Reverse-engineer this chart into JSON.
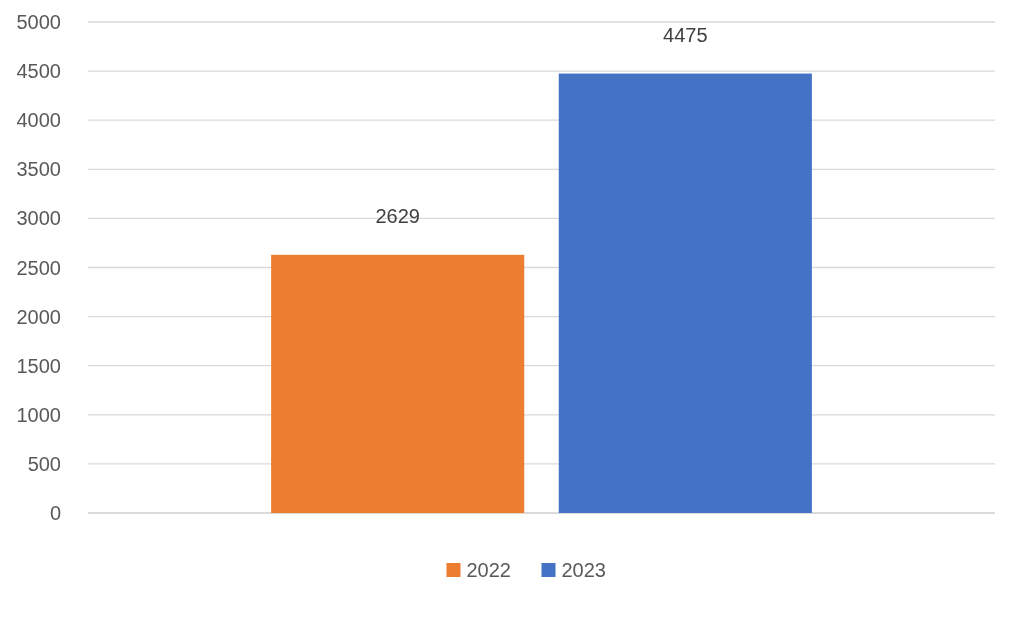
{
  "chart_data": {
    "type": "bar",
    "categories": [
      null
    ],
    "series": [
      {
        "name": "2022",
        "color": "#ed7d31",
        "values": [
          2629
        ]
      },
      {
        "name": "2023",
        "color": "#4472c4",
        "values": [
          4475
        ]
      }
    ],
    "ylim": [
      0,
      5000
    ],
    "yticks": [
      0,
      500,
      1000,
      1500,
      2000,
      2500,
      3000,
      3500,
      4000,
      4500,
      5000
    ],
    "grid": "y",
    "legend": "bottom",
    "data_labels": true
  }
}
